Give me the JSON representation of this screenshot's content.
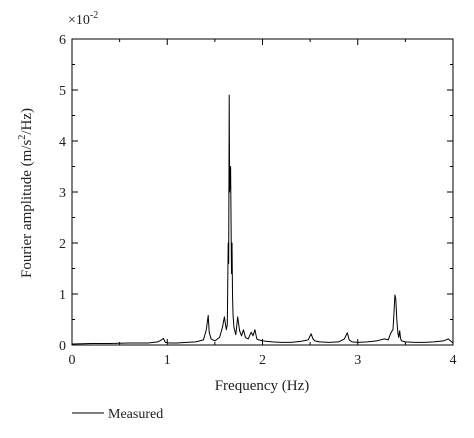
{
  "chart_data": {
    "type": "line",
    "xlabel": "Frequency (Hz)",
    "ylabel_main": "Fourier amplitude (m/s",
    "ylabel_sup": "2",
    "ylabel_tail": "/Hz)",
    "y_multiplier_base": "×10",
    "y_multiplier_exp": "-2",
    "xlim": [
      0,
      4
    ],
    "ylim": [
      0,
      6
    ],
    "x_ticks": [
      "0",
      "1",
      "2",
      "3",
      "4"
    ],
    "y_ticks": [
      "0",
      "1",
      "2",
      "3",
      "4",
      "5",
      "6"
    ],
    "grid": false,
    "legend_position": "bottom-left",
    "series": [
      {
        "name": "Measured",
        "color": "#000000",
        "x": [
          0.0,
          0.2,
          0.4,
          0.6,
          0.8,
          0.9,
          0.94,
          0.96,
          0.98,
          1.02,
          1.1,
          1.2,
          1.3,
          1.38,
          1.41,
          1.43,
          1.44,
          1.46,
          1.5,
          1.55,
          1.58,
          1.6,
          1.62,
          1.63,
          1.64,
          1.645,
          1.65,
          1.655,
          1.665,
          1.675,
          1.68,
          1.685,
          1.69,
          1.7,
          1.72,
          1.74,
          1.76,
          1.78,
          1.8,
          1.82,
          1.85,
          1.88,
          1.9,
          1.92,
          1.94,
          1.96,
          2.0,
          2.1,
          2.2,
          2.3,
          2.4,
          2.48,
          2.51,
          2.53,
          2.55,
          2.6,
          2.7,
          2.8,
          2.86,
          2.89,
          2.91,
          2.94,
          3.0,
          3.1,
          3.2,
          3.28,
          3.32,
          3.35,
          3.37,
          3.38,
          3.39,
          3.4,
          3.41,
          3.42,
          3.43,
          3.44,
          3.45,
          3.46,
          3.5,
          3.6,
          3.7,
          3.8,
          3.9,
          3.95,
          3.98,
          4.0
        ],
        "y": [
          0.02,
          0.03,
          0.03,
          0.04,
          0.04,
          0.06,
          0.1,
          0.13,
          0.05,
          0.04,
          0.04,
          0.05,
          0.06,
          0.1,
          0.3,
          0.58,
          0.25,
          0.12,
          0.08,
          0.15,
          0.35,
          0.55,
          0.3,
          0.4,
          2.0,
          1.6,
          4.9,
          3.0,
          3.5,
          1.4,
          2.0,
          1.0,
          0.6,
          0.35,
          0.2,
          0.55,
          0.28,
          0.18,
          0.3,
          0.15,
          0.12,
          0.25,
          0.18,
          0.3,
          0.12,
          0.1,
          0.08,
          0.06,
          0.05,
          0.05,
          0.07,
          0.1,
          0.22,
          0.12,
          0.08,
          0.06,
          0.05,
          0.06,
          0.12,
          0.24,
          0.1,
          0.06,
          0.05,
          0.06,
          0.08,
          0.12,
          0.1,
          0.25,
          0.3,
          0.6,
          0.98,
          0.9,
          0.5,
          0.25,
          0.15,
          0.28,
          0.12,
          0.08,
          0.06,
          0.05,
          0.05,
          0.06,
          0.08,
          0.12,
          0.07,
          0.04
        ]
      }
    ]
  }
}
